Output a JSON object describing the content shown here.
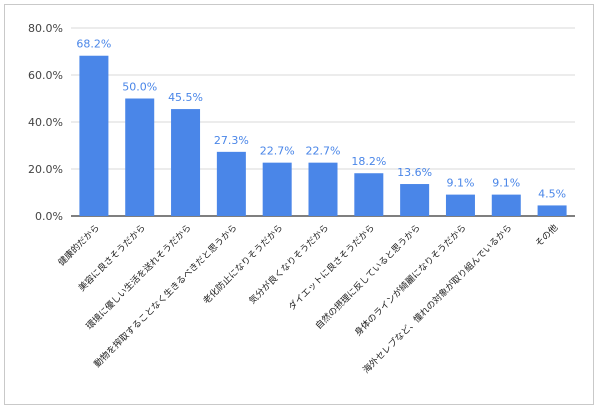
{
  "chart_data": {
    "type": "bar",
    "categories": [
      "健康的だから",
      "美容に良さそうだから",
      "環境に優しい生活を送れそうだから",
      "動物を搾取することなく生きるべきだと思うから",
      "老化防止になりそうだから",
      "気分が良くなりそうだから",
      "ダイエットに良さそうだから",
      "自然の摂理に反していると思うから",
      "身体のラインが綺麗になりそうだから",
      "海外セレブなど、憧れの対象が取り組んでいるから",
      "その他"
    ],
    "values": [
      68.2,
      50.0,
      45.5,
      27.3,
      22.7,
      22.7,
      18.2,
      13.6,
      9.1,
      9.1,
      4.5
    ],
    "data_labels": [
      "68.2%",
      "50.0%",
      "45.5%",
      "27.3%",
      "22.7%",
      "22.7%",
      "18.2%",
      "13.6%",
      "9.1%",
      "9.1%",
      "4.5%"
    ],
    "y_ticks": [
      0,
      20,
      40,
      60,
      80
    ],
    "y_tick_labels": [
      "0.0%",
      "20.0%",
      "40.0%",
      "60.0%",
      "80.0%"
    ],
    "ylim": [
      0,
      80
    ],
    "title": "",
    "xlabel": "",
    "ylabel": "",
    "grid": true,
    "legend": "none",
    "bar_color": "#4a86e8",
    "label_color": "#4a86e8"
  }
}
